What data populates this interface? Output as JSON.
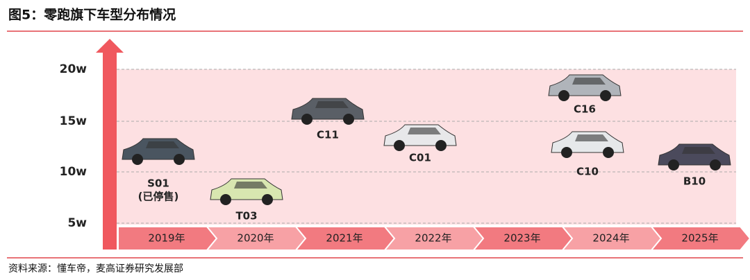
{
  "header": {
    "title": "图5：零跑旗下车型分布情况"
  },
  "axis": {
    "labels": [
      "20w",
      "15w",
      "10w",
      "5w"
    ]
  },
  "timeline": {
    "years": [
      "2019年",
      "2020年",
      "2021年",
      "2022年",
      "2023年",
      "2024年",
      "2025年"
    ]
  },
  "nodes": [
    {
      "label": "S01",
      "note": "(已停售)"
    },
    {
      "label": "T03"
    },
    {
      "label": "C11"
    },
    {
      "label": "C01"
    },
    {
      "label": "C16"
    },
    {
      "label": "C10"
    },
    {
      "label": "B10"
    }
  ],
  "footer": {
    "source": "资料来源：懂车帝，麦高证券研究发展部"
  }
}
